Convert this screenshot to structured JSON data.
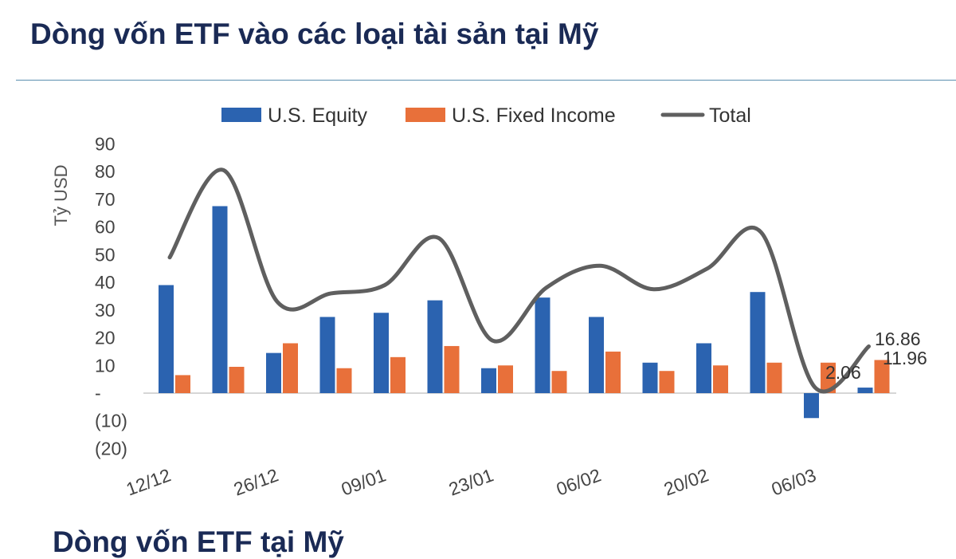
{
  "page": {
    "title": "Dòng vốn ETF vào các loại tài sản tại Mỹ",
    "bottom_title": "Dòng vốn ETF tại Mỹ"
  },
  "chart_data": {
    "type": "bar",
    "ylabel": "Tỷ USD",
    "ylim": [
      -20,
      90
    ],
    "yticks": [
      {
        "value": 90,
        "label": "90"
      },
      {
        "value": 80,
        "label": "80"
      },
      {
        "value": 70,
        "label": "70"
      },
      {
        "value": 60,
        "label": "60"
      },
      {
        "value": 50,
        "label": "50"
      },
      {
        "value": 40,
        "label": "40"
      },
      {
        "value": 30,
        "label": "30"
      },
      {
        "value": 20,
        "label": "20"
      },
      {
        "value": 10,
        "label": "10"
      },
      {
        "value": 0,
        "label": "-"
      },
      {
        "value": -10,
        "label": "(10)"
      },
      {
        "value": -20,
        "label": "(20)"
      }
    ],
    "xtick_labels": [
      {
        "index": 0,
        "label": "12/12"
      },
      {
        "index": 2,
        "label": "26/12"
      },
      {
        "index": 4,
        "label": "09/01"
      },
      {
        "index": 6,
        "label": "23/01"
      },
      {
        "index": 8,
        "label": "06/02"
      },
      {
        "index": 10,
        "label": "20/02"
      },
      {
        "index": 12,
        "label": "06/03"
      }
    ],
    "legend_position": "top",
    "grid": false,
    "series": [
      {
        "name": "U.S. Equity",
        "kind": "bar",
        "color": "#2b63b0",
        "values": [
          39,
          67.5,
          14.5,
          27.5,
          29,
          33.5,
          9,
          34.5,
          27.5,
          11,
          18,
          36.5,
          -9,
          2
        ]
      },
      {
        "name": "U.S. Fixed Income",
        "kind": "bar",
        "color": "#e8703a",
        "values": [
          6.5,
          9.5,
          18,
          9,
          13,
          17,
          10,
          8,
          15,
          8,
          10,
          11,
          11,
          11.96
        ]
      },
      {
        "name": "Total",
        "kind": "line",
        "color": "#5f5f5f",
        "values": [
          49,
          80.5,
          33,
          36,
          39,
          56,
          19,
          38,
          46,
          37.5,
          45,
          58,
          2.06,
          16.86
        ]
      }
    ],
    "annotations": [
      {
        "text": "16.86",
        "series": "Total",
        "index": 13
      },
      {
        "text": "11.96",
        "series": "U.S. Fixed Income",
        "index": 13
      },
      {
        "text": "2.06",
        "series": "Total",
        "index": 12
      }
    ]
  }
}
